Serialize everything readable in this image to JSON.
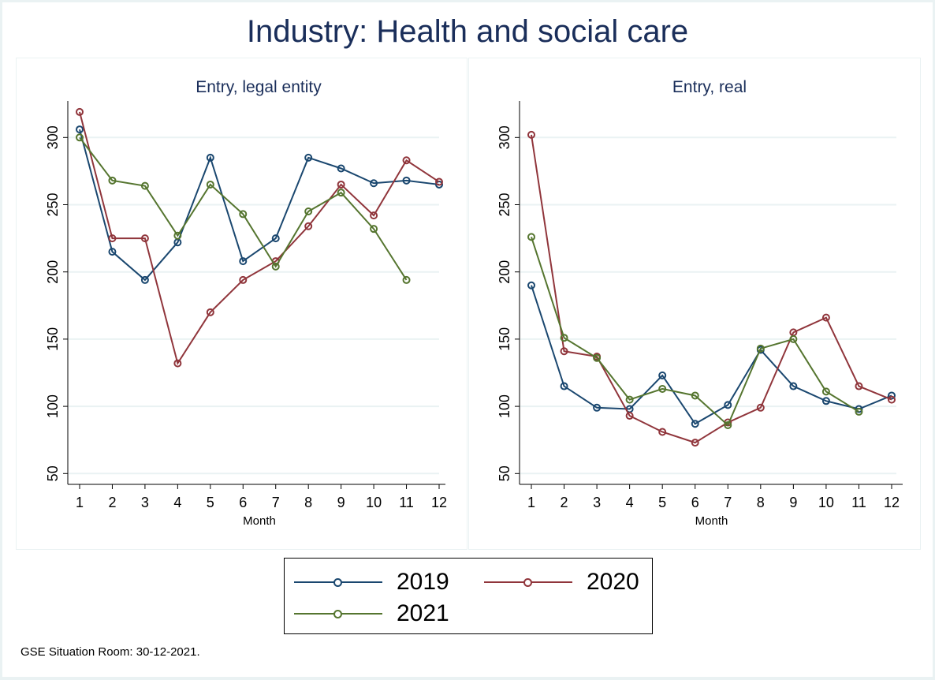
{
  "title": "Industry: Health and social care",
  "footer": "GSE Situation Room: 30-12-2021.",
  "legend": [
    {
      "label": "2019",
      "color": "#1a476f"
    },
    {
      "label": "2020",
      "color": "#90353b"
    },
    {
      "label": "2021",
      "color": "#55752f"
    }
  ],
  "chart_data": [
    {
      "type": "line",
      "title": "Entry, legal entity",
      "xlabel": "Month",
      "ylabel": "",
      "x": [
        1,
        2,
        3,
        4,
        5,
        6,
        7,
        8,
        9,
        10,
        11,
        12
      ],
      "xticks": [
        "1",
        "2",
        "3",
        "4",
        "5",
        "6",
        "7",
        "8",
        "9",
        "10",
        "11",
        "12"
      ],
      "yticks": [
        50,
        100,
        150,
        200,
        250,
        300
      ],
      "ylim": [
        40,
        327
      ],
      "grid": true,
      "series": [
        {
          "name": "2019",
          "color": "#1a476f",
          "values": [
            306,
            215,
            194,
            222,
            285,
            208,
            225,
            285,
            277,
            266,
            268,
            265
          ]
        },
        {
          "name": "2020",
          "color": "#90353b",
          "values": [
            319,
            225,
            225,
            132,
            170,
            194,
            208,
            234,
            265,
            242,
            283,
            267
          ]
        },
        {
          "name": "2021",
          "color": "#55752f",
          "values": [
            300,
            268,
            264,
            227,
            265,
            243,
            204,
            245,
            259,
            232,
            194,
            null
          ]
        }
      ]
    },
    {
      "type": "line",
      "title": "Entry, real",
      "xlabel": "Month",
      "ylabel": "",
      "x": [
        1,
        2,
        3,
        4,
        5,
        6,
        7,
        8,
        9,
        10,
        11,
        12
      ],
      "xticks": [
        "1",
        "2",
        "3",
        "4",
        "5",
        "6",
        "7",
        "8",
        "9",
        "10",
        "11",
        "12"
      ],
      "yticks": [
        50,
        100,
        150,
        200,
        250,
        300
      ],
      "ylim": [
        40,
        327
      ],
      "grid": true,
      "series": [
        {
          "name": "2019",
          "color": "#1a476f",
          "values": [
            190,
            115,
            99,
            98,
            123,
            87,
            101,
            142,
            115,
            104,
            98,
            108
          ]
        },
        {
          "name": "2020",
          "color": "#90353b",
          "values": [
            302,
            141,
            137,
            93,
            81,
            73,
            88,
            99,
            155,
            166,
            115,
            105
          ]
        },
        {
          "name": "2021",
          "color": "#55752f",
          "values": [
            226,
            151,
            136,
            105,
            113,
            108,
            86,
            143,
            150,
            111,
            96,
            null
          ]
        }
      ]
    }
  ]
}
